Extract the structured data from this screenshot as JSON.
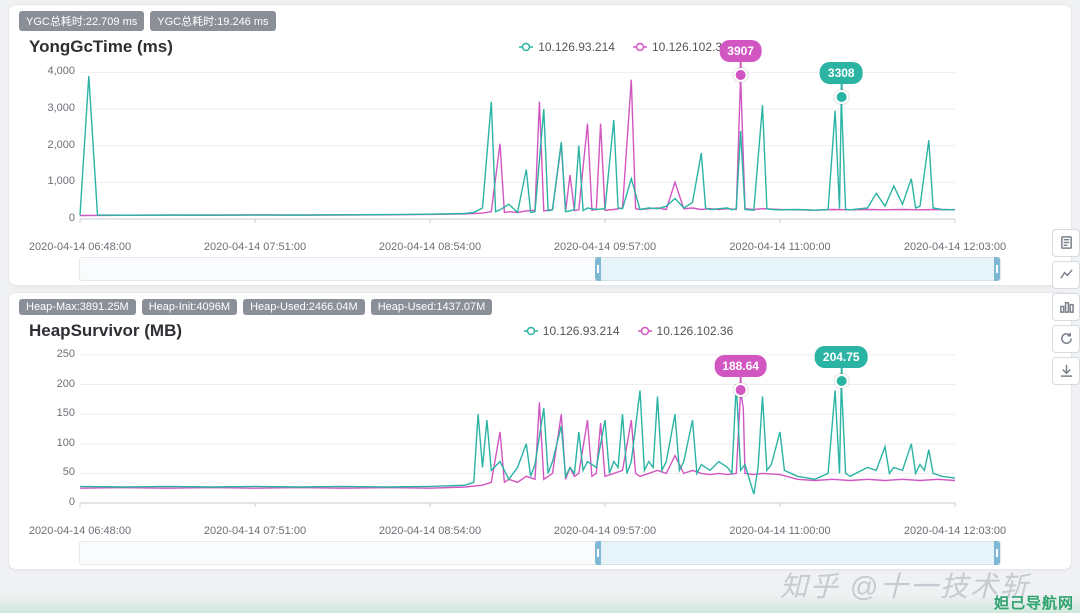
{
  "colors": {
    "seriesA": "#2bb3a3",
    "seriesB": "#d156c1",
    "grid": "#eceef1",
    "axis": "#c9ced5",
    "badge_bg": "#8a8f98",
    "pinA_bg": "#2bb3a3",
    "pinB_bg": "#d156c1",
    "panel_bg": "#ffffff"
  },
  "watermark": "知乎 @十一技术斩",
  "footer_text": "妲己导航网",
  "panels": [
    {
      "id": "yonggc",
      "badges": [
        "YGC总耗时:22.709 ms",
        "YGC总耗时:19.246 ms"
      ],
      "title": "YongGcTime (ms)",
      "legend": [
        "10.126.93.214",
        "10.126.102.36"
      ],
      "yticks": [
        0,
        1000,
        2000,
        3000,
        4000
      ],
      "ytick_labels": [
        "0",
        "1,000",
        "2,000",
        "3,000",
        "4,000"
      ],
      "ymax": 4200,
      "xticks": [
        0,
        0.2,
        0.4,
        0.6,
        0.8,
        1.0
      ],
      "xtick_labels": [
        "2020-04-14 06:48:00",
        "2020-04-14 07:51:00",
        "2020-04-14 08:54:00",
        "2020-04-14 09:57:00",
        "2020-04-14 11:00:00",
        "2020-04-14 12:03:00"
      ],
      "pins": [
        {
          "series": "B",
          "xr": 0.755,
          "label": "3907",
          "value": 3907
        },
        {
          "series": "A",
          "xr": 0.87,
          "label": "3308",
          "value": 3308
        }
      ],
      "brush": {
        "start": 0.56,
        "end": 1.0
      },
      "seriesA": [
        [
          0.0,
          100
        ],
        [
          0.01,
          3900
        ],
        [
          0.02,
          110
        ],
        [
          0.05,
          105
        ],
        [
          0.1,
          110
        ],
        [
          0.15,
          108
        ],
        [
          0.2,
          112
        ],
        [
          0.25,
          109
        ],
        [
          0.3,
          115
        ],
        [
          0.35,
          120
        ],
        [
          0.4,
          130
        ],
        [
          0.44,
          150
        ],
        [
          0.45,
          180
        ],
        [
          0.46,
          300
        ],
        [
          0.47,
          3200
        ],
        [
          0.475,
          200
        ],
        [
          0.48,
          250
        ],
        [
          0.49,
          400
        ],
        [
          0.5,
          180
        ],
        [
          0.51,
          1350
        ],
        [
          0.515,
          180
        ],
        [
          0.52,
          200
        ],
        [
          0.53,
          3000
        ],
        [
          0.535,
          220
        ],
        [
          0.54,
          250
        ],
        [
          0.55,
          2100
        ],
        [
          0.555,
          200
        ],
        [
          0.56,
          220
        ],
        [
          0.565,
          260
        ],
        [
          0.57,
          2000
        ],
        [
          0.575,
          230
        ],
        [
          0.58,
          300
        ],
        [
          0.59,
          260
        ],
        [
          0.6,
          280
        ],
        [
          0.61,
          2700
        ],
        [
          0.615,
          300
        ],
        [
          0.62,
          280
        ],
        [
          0.63,
          1100
        ],
        [
          0.64,
          260
        ],
        [
          0.65,
          300
        ],
        [
          0.66,
          280
        ],
        [
          0.67,
          350
        ],
        [
          0.68,
          560
        ],
        [
          0.69,
          300
        ],
        [
          0.7,
          450
        ],
        [
          0.71,
          1800
        ],
        [
          0.715,
          300
        ],
        [
          0.72,
          260
        ],
        [
          0.73,
          280
        ],
        [
          0.74,
          300
        ],
        [
          0.745,
          250
        ],
        [
          0.75,
          280
        ],
        [
          0.755,
          2400
        ],
        [
          0.76,
          260
        ],
        [
          0.77,
          240
        ],
        [
          0.78,
          3100
        ],
        [
          0.785,
          280
        ],
        [
          0.79,
          260
        ],
        [
          0.8,
          250
        ],
        [
          0.82,
          260
        ],
        [
          0.84,
          240
        ],
        [
          0.855,
          260
        ],
        [
          0.863,
          2950
        ],
        [
          0.868,
          280
        ],
        [
          0.87,
          3308
        ],
        [
          0.875,
          260
        ],
        [
          0.88,
          250
        ],
        [
          0.9,
          300
        ],
        [
          0.91,
          700
        ],
        [
          0.92,
          350
        ],
        [
          0.93,
          900
        ],
        [
          0.94,
          400
        ],
        [
          0.95,
          1100
        ],
        [
          0.955,
          300
        ],
        [
          0.96,
          350
        ],
        [
          0.97,
          2150
        ],
        [
          0.975,
          300
        ],
        [
          0.985,
          260
        ],
        [
          1.0,
          250
        ]
      ],
      "seriesB": [
        [
          0.0,
          95
        ],
        [
          0.05,
          100
        ],
        [
          0.1,
          105
        ],
        [
          0.15,
          102
        ],
        [
          0.2,
          108
        ],
        [
          0.25,
          104
        ],
        [
          0.3,
          110
        ],
        [
          0.35,
          115
        ],
        [
          0.4,
          125
        ],
        [
          0.44,
          140
        ],
        [
          0.46,
          160
        ],
        [
          0.47,
          200
        ],
        [
          0.48,
          2050
        ],
        [
          0.485,
          180
        ],
        [
          0.49,
          200
        ],
        [
          0.5,
          180
        ],
        [
          0.51,
          220
        ],
        [
          0.52,
          240
        ],
        [
          0.525,
          3200
        ],
        [
          0.53,
          220
        ],
        [
          0.54,
          260
        ],
        [
          0.55,
          2050
        ],
        [
          0.555,
          210
        ],
        [
          0.56,
          1200
        ],
        [
          0.565,
          230
        ],
        [
          0.57,
          250
        ],
        [
          0.58,
          2600
        ],
        [
          0.585,
          240
        ],
        [
          0.59,
          260
        ],
        [
          0.595,
          2600
        ],
        [
          0.6,
          240
        ],
        [
          0.61,
          260
        ],
        [
          0.62,
          300
        ],
        [
          0.63,
          3800
        ],
        [
          0.635,
          280
        ],
        [
          0.64,
          260
        ],
        [
          0.65,
          280
        ],
        [
          0.66,
          300
        ],
        [
          0.67,
          260
        ],
        [
          0.68,
          1000
        ],
        [
          0.69,
          280
        ],
        [
          0.7,
          300
        ],
        [
          0.71,
          260
        ],
        [
          0.72,
          280
        ],
        [
          0.73,
          260
        ],
        [
          0.74,
          280
        ],
        [
          0.75,
          260
        ],
        [
          0.755,
          3907
        ],
        [
          0.76,
          280
        ],
        [
          0.77,
          260
        ],
        [
          0.78,
          280
        ],
        [
          0.8,
          260
        ],
        [
          0.82,
          250
        ],
        [
          0.84,
          240
        ],
        [
          0.86,
          260
        ],
        [
          0.88,
          250
        ],
        [
          0.9,
          260
        ],
        [
          0.92,
          250
        ],
        [
          0.94,
          260
        ],
        [
          0.96,
          250
        ],
        [
          0.98,
          260
        ],
        [
          1.0,
          255
        ]
      ]
    },
    {
      "id": "heap",
      "badges": [
        "Heap-Max:3891.25M",
        "Heap-Init:4096M",
        "Heap-Used:2466.04M",
        "Heap-Used:1437.07M"
      ],
      "title": "HeapSurvivor (MB)",
      "legend": [
        "10.126.93.214",
        "10.126.102.36"
      ],
      "yticks": [
        0,
        50,
        100,
        150,
        200,
        250
      ],
      "ytick_labels": [
        "0",
        "50",
        "100",
        "150",
        "200",
        "250"
      ],
      "ymax": 260,
      "xticks": [
        0,
        0.2,
        0.4,
        0.6,
        0.8,
        1.0
      ],
      "xtick_labels": [
        "2020-04-14 06:48:00",
        "2020-04-14 07:51:00",
        "2020-04-14 08:54:00",
        "2020-04-14 09:57:00",
        "2020-04-14 11:00:00",
        "2020-04-14 12:03:00"
      ],
      "pins": [
        {
          "series": "B",
          "xr": 0.755,
          "label": "188.64",
          "value": 188.64
        },
        {
          "series": "A",
          "xr": 0.87,
          "label": "204.75",
          "value": 204.75
        }
      ],
      "brush": {
        "start": 0.56,
        "end": 1.0
      },
      "seriesA": [
        [
          0.0,
          28
        ],
        [
          0.05,
          27
        ],
        [
          0.1,
          28
        ],
        [
          0.15,
          27
        ],
        [
          0.2,
          28
        ],
        [
          0.25,
          27
        ],
        [
          0.3,
          28
        ],
        [
          0.35,
          27
        ],
        [
          0.4,
          28
        ],
        [
          0.44,
          30
        ],
        [
          0.45,
          35
        ],
        [
          0.455,
          150
        ],
        [
          0.46,
          60
        ],
        [
          0.465,
          140
        ],
        [
          0.47,
          55
        ],
        [
          0.48,
          70
        ],
        [
          0.49,
          40
        ],
        [
          0.5,
          60
        ],
        [
          0.51,
          100
        ],
        [
          0.515,
          45
        ],
        [
          0.52,
          65
        ],
        [
          0.53,
          160
        ],
        [
          0.535,
          50
        ],
        [
          0.54,
          70
        ],
        [
          0.55,
          130
        ],
        [
          0.555,
          45
        ],
        [
          0.56,
          60
        ],
        [
          0.565,
          50
        ],
        [
          0.57,
          120
        ],
        [
          0.575,
          55
        ],
        [
          0.58,
          70
        ],
        [
          0.59,
          60
        ],
        [
          0.6,
          140
        ],
        [
          0.605,
          50
        ],
        [
          0.61,
          70
        ],
        [
          0.615,
          60
        ],
        [
          0.62,
          150
        ],
        [
          0.625,
          50
        ],
        [
          0.63,
          70
        ],
        [
          0.64,
          190
        ],
        [
          0.645,
          55
        ],
        [
          0.65,
          70
        ],
        [
          0.655,
          60
        ],
        [
          0.66,
          180
        ],
        [
          0.665,
          55
        ],
        [
          0.67,
          70
        ],
        [
          0.68,
          150
        ],
        [
          0.685,
          55
        ],
        [
          0.69,
          70
        ],
        [
          0.7,
          140
        ],
        [
          0.705,
          50
        ],
        [
          0.71,
          65
        ],
        [
          0.72,
          55
        ],
        [
          0.73,
          70
        ],
        [
          0.74,
          60
        ],
        [
          0.745,
          50
        ],
        [
          0.75,
          200
        ],
        [
          0.755,
          55
        ],
        [
          0.76,
          65
        ],
        [
          0.77,
          15
        ],
        [
          0.775,
          60
        ],
        [
          0.78,
          180
        ],
        [
          0.785,
          55
        ],
        [
          0.79,
          65
        ],
        [
          0.8,
          120
        ],
        [
          0.805,
          55
        ],
        [
          0.82,
          45
        ],
        [
          0.84,
          40
        ],
        [
          0.855,
          50
        ],
        [
          0.863,
          190
        ],
        [
          0.868,
          50
        ],
        [
          0.87,
          204.75
        ],
        [
          0.875,
          50
        ],
        [
          0.88,
          45
        ],
        [
          0.9,
          60
        ],
        [
          0.91,
          55
        ],
        [
          0.92,
          95
        ],
        [
          0.925,
          50
        ],
        [
          0.93,
          60
        ],
        [
          0.94,
          55
        ],
        [
          0.95,
          100
        ],
        [
          0.955,
          50
        ],
        [
          0.96,
          65
        ],
        [
          0.965,
          55
        ],
        [
          0.97,
          90
        ],
        [
          0.975,
          50
        ],
        [
          0.985,
          45
        ],
        [
          1.0,
          42
        ]
      ],
      "seriesB": [
        [
          0.0,
          25
        ],
        [
          0.05,
          26
        ],
        [
          0.1,
          25
        ],
        [
          0.15,
          26
        ],
        [
          0.2,
          25
        ],
        [
          0.25,
          26
        ],
        [
          0.3,
          25
        ],
        [
          0.35,
          26
        ],
        [
          0.4,
          25
        ],
        [
          0.44,
          27
        ],
        [
          0.46,
          30
        ],
        [
          0.47,
          35
        ],
        [
          0.48,
          120
        ],
        [
          0.485,
          35
        ],
        [
          0.49,
          40
        ],
        [
          0.5,
          35
        ],
        [
          0.51,
          45
        ],
        [
          0.52,
          40
        ],
        [
          0.525,
          170
        ],
        [
          0.53,
          40
        ],
        [
          0.54,
          50
        ],
        [
          0.55,
          150
        ],
        [
          0.555,
          40
        ],
        [
          0.56,
          60
        ],
        [
          0.565,
          45
        ],
        [
          0.57,
          50
        ],
        [
          0.58,
          140
        ],
        [
          0.585,
          45
        ],
        [
          0.59,
          50
        ],
        [
          0.595,
          135
        ],
        [
          0.6,
          45
        ],
        [
          0.61,
          50
        ],
        [
          0.62,
          55
        ],
        [
          0.63,
          140
        ],
        [
          0.635,
          50
        ],
        [
          0.64,
          45
        ],
        [
          0.65,
          50
        ],
        [
          0.66,
          55
        ],
        [
          0.67,
          50
        ],
        [
          0.68,
          80
        ],
        [
          0.69,
          50
        ],
        [
          0.7,
          55
        ],
        [
          0.71,
          50
        ],
        [
          0.72,
          48
        ],
        [
          0.73,
          50
        ],
        [
          0.74,
          48
        ],
        [
          0.75,
          50
        ],
        [
          0.755,
          188.64
        ],
        [
          0.758,
          160
        ],
        [
          0.76,
          50
        ],
        [
          0.77,
          48
        ],
        [
          0.78,
          50
        ],
        [
          0.8,
          48
        ],
        [
          0.82,
          40
        ],
        [
          0.84,
          38
        ],
        [
          0.86,
          40
        ],
        [
          0.88,
          38
        ],
        [
          0.9,
          40
        ],
        [
          0.92,
          38
        ],
        [
          0.94,
          40
        ],
        [
          0.96,
          38
        ],
        [
          0.98,
          40
        ],
        [
          1.0,
          38
        ]
      ]
    }
  ],
  "toolbar": [
    "file",
    "line",
    "bars",
    "refresh",
    "download"
  ]
}
